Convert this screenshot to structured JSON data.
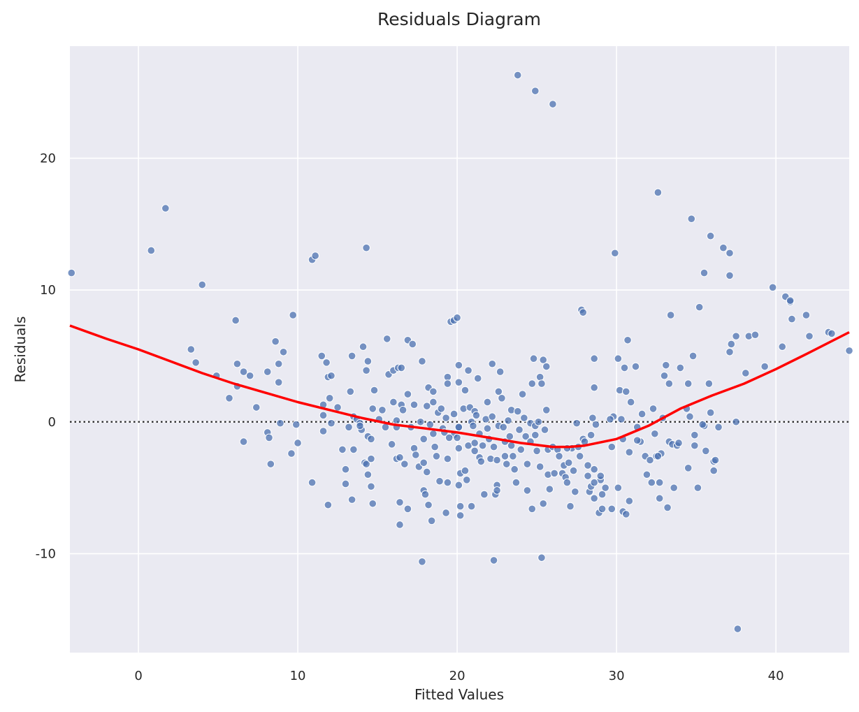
{
  "chart_data": {
    "type": "scatter",
    "title": "Residuals Diagram",
    "xlabel": "Fitted Values",
    "ylabel": "Residuals",
    "xlim": [
      -4.3,
      44.6
    ],
    "ylim": [
      -17.5,
      28.5
    ],
    "xticks": [
      0,
      10,
      20,
      30,
      40
    ],
    "xtick_labels": [
      "0",
      "10",
      "20",
      "30",
      "40"
    ],
    "yticks": [
      -10,
      0,
      10,
      20
    ],
    "ytick_labels": [
      "-10",
      "0",
      "10",
      "20"
    ],
    "grid": true,
    "background": "#eaeaf2",
    "grid_color": "#ffffff",
    "point_color": "#4c72b0",
    "trend_color": "#ff0000",
    "zero_line_color": "#262626",
    "points": [
      [
        -4.2,
        11.3
      ],
      [
        0.8,
        13.0
      ],
      [
        1.7,
        16.2
      ],
      [
        4.0,
        10.4
      ],
      [
        10.9,
        12.3
      ],
      [
        11.1,
        12.6
      ],
      [
        14.3,
        13.2
      ],
      [
        9.7,
        8.1
      ],
      [
        6.1,
        7.7
      ],
      [
        3.3,
        5.5
      ],
      [
        3.6,
        4.5
      ],
      [
        4.9,
        3.5
      ],
      [
        6.2,
        4.4
      ],
      [
        6.6,
        3.8
      ],
      [
        7.0,
        3.5
      ],
      [
        5.7,
        1.8
      ],
      [
        6.2,
        2.7
      ],
      [
        7.4,
        1.1
      ],
      [
        6.6,
        -1.5
      ],
      [
        8.1,
        3.8
      ],
      [
        8.6,
        6.1
      ],
      [
        8.8,
        4.4
      ],
      [
        9.1,
        5.3
      ],
      [
        8.8,
        3.0
      ],
      [
        8.1,
        -0.8
      ],
      [
        8.2,
        -1.2
      ],
      [
        8.9,
        -0.1
      ],
      [
        9.9,
        -0.2
      ],
      [
        10.0,
        -1.6
      ],
      [
        9.6,
        -2.4
      ],
      [
        8.3,
        -3.2
      ],
      [
        10.9,
        -4.6
      ],
      [
        11.5,
        5.0
      ],
      [
        11.8,
        4.5
      ],
      [
        11.9,
        3.4
      ],
      [
        12.1,
        3.5
      ],
      [
        11.6,
        1.3
      ],
      [
        12.0,
        1.8
      ],
      [
        11.6,
        0.5
      ],
      [
        11.6,
        -0.7
      ],
      [
        12.1,
        -0.1
      ],
      [
        11.9,
        -6.3
      ],
      [
        12.5,
        1.1
      ],
      [
        12.8,
        -2.1
      ],
      [
        13.0,
        -3.6
      ],
      [
        13.0,
        -4.7
      ],
      [
        13.4,
        -5.9
      ],
      [
        13.3,
        2.3
      ],
      [
        13.2,
        -0.4
      ],
      [
        13.5,
        0.4
      ],
      [
        13.4,
        5.0
      ],
      [
        13.5,
        -2.1
      ],
      [
        13.7,
        0.2
      ],
      [
        13.9,
        -0.1
      ],
      [
        14.0,
        -0.6
      ],
      [
        14.1,
        5.7
      ],
      [
        14.4,
        4.6
      ],
      [
        14.3,
        3.9
      ],
      [
        14.2,
        -3.1
      ],
      [
        14.3,
        -3.2
      ],
      [
        14.4,
        -4.0
      ],
      [
        14.4,
        -1.1
      ],
      [
        14.6,
        -4.9
      ],
      [
        14.6,
        -1.3
      ],
      [
        14.7,
        -6.2
      ],
      [
        14.6,
        -2.8
      ],
      [
        14.7,
        1.0
      ],
      [
        14.8,
        2.4
      ],
      [
        15.1,
        0.2
      ],
      [
        15.3,
        0.9
      ],
      [
        15.5,
        -0.4
      ],
      [
        15.6,
        6.3
      ],
      [
        15.7,
        3.6
      ],
      [
        16.0,
        3.9
      ],
      [
        16.0,
        1.5
      ],
      [
        16.2,
        0.1
      ],
      [
        16.2,
        -0.4
      ],
      [
        16.2,
        -2.8
      ],
      [
        16.3,
        4.1
      ],
      [
        16.4,
        -2.7
      ],
      [
        16.5,
        1.3
      ],
      [
        16.5,
        4.1
      ],
      [
        16.6,
        0.9
      ],
      [
        16.7,
        -3.2
      ],
      [
        16.9,
        6.2
      ],
      [
        16.9,
        2.1
      ],
      [
        17.1,
        -0.4
      ],
      [
        17.3,
        1.3
      ],
      [
        17.2,
        5.9
      ],
      [
        17.3,
        -2.0
      ],
      [
        17.4,
        -2.5
      ],
      [
        17.6,
        -3.4
      ],
      [
        17.7,
        0.0
      ],
      [
        17.8,
        4.6
      ],
      [
        17.9,
        -3.1
      ],
      [
        17.9,
        -5.2
      ],
      [
        18.0,
        -5.5
      ],
      [
        18.1,
        -3.8
      ],
      [
        18.2,
        -6.3
      ],
      [
        18.1,
        1.2
      ],
      [
        18.2,
        2.6
      ],
      [
        18.3,
        -0.2
      ],
      [
        18.5,
        2.3
      ],
      [
        18.5,
        1.5
      ],
      [
        18.5,
        -0.9
      ],
      [
        18.6,
        -1.9
      ],
      [
        18.7,
        -2.6
      ],
      [
        18.8,
        0.7
      ],
      [
        18.9,
        -4.5
      ],
      [
        19.0,
        1.0
      ],
      [
        19.1,
        -0.5
      ],
      [
        19.2,
        -0.8
      ],
      [
        19.3,
        0.3
      ],
      [
        19.4,
        3.4
      ],
      [
        19.4,
        2.9
      ],
      [
        19.4,
        -2.8
      ],
      [
        19.4,
        -4.6
      ],
      [
        19.6,
        7.6
      ],
      [
        19.8,
        7.7
      ],
      [
        20.0,
        7.9
      ],
      [
        19.8,
        0.6
      ],
      [
        19.8,
        -1.0
      ],
      [
        20.0,
        -1.2
      ],
      [
        20.1,
        -0.4
      ],
      [
        20.1,
        4.3
      ],
      [
        20.1,
        3.0
      ],
      [
        20.1,
        -0.4
      ],
      [
        20.1,
        -2.0
      ],
      [
        20.2,
        -3.9
      ],
      [
        20.1,
        -4.8
      ],
      [
        20.2,
        -6.4
      ],
      [
        20.4,
        1.0
      ],
      [
        20.5,
        2.4
      ],
      [
        20.5,
        -3.7
      ],
      [
        20.6,
        -4.4
      ],
      [
        20.7,
        3.9
      ],
      [
        20.8,
        1.1
      ],
      [
        20.9,
        0.0
      ],
      [
        21.0,
        -0.3
      ],
      [
        21.1,
        -2.2
      ],
      [
        21.1,
        0.8
      ],
      [
        21.2,
        0.5
      ],
      [
        21.3,
        3.3
      ],
      [
        21.4,
        -0.9
      ],
      [
        21.4,
        -2.7
      ],
      [
        21.5,
        -3.0
      ],
      [
        21.6,
        -1.8
      ],
      [
        21.8,
        0.2
      ],
      [
        21.9,
        1.5
      ],
      [
        21.9,
        -0.5
      ],
      [
        22.0,
        -1.3
      ],
      [
        22.1,
        -2.8
      ],
      [
        22.2,
        4.4
      ],
      [
        22.2,
        0.4
      ],
      [
        22.3,
        -1.9
      ],
      [
        22.4,
        -5.5
      ],
      [
        22.5,
        -4.8
      ],
      [
        22.5,
        -2.9
      ],
      [
        22.6,
        2.3
      ],
      [
        22.6,
        -0.3
      ],
      [
        22.7,
        3.8
      ],
      [
        22.8,
        1.8
      ],
      [
        22.9,
        -0.4
      ],
      [
        23.0,
        -1.5
      ],
      [
        23.0,
        -2.6
      ],
      [
        23.1,
        -3.2
      ],
      [
        23.2,
        0.1
      ],
      [
        23.3,
        -1.1
      ],
      [
        23.4,
        0.9
      ],
      [
        23.4,
        -1.8
      ],
      [
        23.5,
        -2.6
      ],
      [
        23.6,
        -3.6
      ],
      [
        23.7,
        -4.6
      ],
      [
        23.8,
        0.8
      ],
      [
        23.9,
        -0.6
      ],
      [
        24.0,
        -2.1
      ],
      [
        24.1,
        2.1
      ],
      [
        24.2,
        0.3
      ],
      [
        24.3,
        -1.1
      ],
      [
        24.4,
        -3.2
      ],
      [
        24.4,
        -5.2
      ],
      [
        24.6,
        -0.1
      ],
      [
        24.6,
        -1.5
      ],
      [
        24.7,
        2.9
      ],
      [
        24.8,
        4.8
      ],
      [
        24.9,
        -0.3
      ],
      [
        24.9,
        -1.0
      ],
      [
        25.0,
        -2.2
      ],
      [
        25.1,
        0.0
      ],
      [
        25.2,
        -3.4
      ],
      [
        25.2,
        3.4
      ],
      [
        25.3,
        2.9
      ],
      [
        25.4,
        4.7
      ],
      [
        25.5,
        -0.6
      ],
      [
        25.6,
        4.2
      ],
      [
        25.6,
        0.9
      ],
      [
        25.7,
        -2.1
      ],
      [
        25.7,
        -4.0
      ],
      [
        25.8,
        -5.1
      ],
      [
        26.0,
        -1.9
      ],
      [
        26.1,
        -3.9
      ],
      [
        26.3,
        -2.1
      ],
      [
        26.4,
        -2.6
      ],
      [
        26.6,
        -3.9
      ],
      [
        26.7,
        -3.3
      ],
      [
        26.8,
        -4.2
      ],
      [
        26.9,
        -4.6
      ],
      [
        27.0,
        -3.1
      ],
      [
        27.1,
        -6.4
      ],
      [
        27.2,
        -2.0
      ],
      [
        27.3,
        -3.7
      ],
      [
        27.4,
        -5.3
      ],
      [
        27.5,
        -0.1
      ],
      [
        27.7,
        -2.6
      ],
      [
        27.8,
        8.5
      ],
      [
        27.9,
        8.3
      ],
      [
        27.9,
        -1.3
      ],
      [
        28.0,
        -1.5
      ],
      [
        28.2,
        -4.1
      ],
      [
        28.3,
        -5.3
      ],
      [
        28.4,
        -4.9
      ],
      [
        28.4,
        -1.0
      ],
      [
        28.5,
        0.3
      ],
      [
        28.6,
        -3.6
      ],
      [
        28.6,
        -5.8
      ],
      [
        28.7,
        -0.2
      ],
      [
        28.6,
        2.6
      ],
      [
        28.6,
        4.8
      ],
      [
        28.9,
        -6.9
      ],
      [
        29.0,
        -4.4
      ],
      [
        29.1,
        -6.6
      ],
      [
        29.3,
        -5.0
      ],
      [
        29.7,
        -6.6
      ],
      [
        29.8,
        0.4
      ],
      [
        29.9,
        12.8
      ],
      [
        30.1,
        4.8
      ],
      [
        30.1,
        -5.0
      ],
      [
        30.2,
        2.4
      ],
      [
        30.3,
        0.2
      ],
      [
        30.4,
        -1.3
      ],
      [
        30.5,
        4.1
      ],
      [
        30.6,
        2.3
      ],
      [
        30.7,
        6.2
      ],
      [
        30.8,
        -2.3
      ],
      [
        30.8,
        -6.0
      ],
      [
        30.9,
        1.5
      ],
      [
        31.2,
        4.2
      ],
      [
        31.3,
        -0.4
      ],
      [
        31.5,
        -1.5
      ],
      [
        31.6,
        0.6
      ],
      [
        31.8,
        -2.6
      ],
      [
        31.9,
        -4.0
      ],
      [
        32.1,
        -2.9
      ],
      [
        32.2,
        -4.6
      ],
      [
        32.3,
        1.0
      ],
      [
        32.4,
        -0.9
      ],
      [
        32.5,
        -2.6
      ],
      [
        32.6,
        17.4
      ],
      [
        32.7,
        -4.6
      ],
      [
        32.7,
        -5.8
      ],
      [
        32.8,
        -2.4
      ],
      [
        32.9,
        0.3
      ],
      [
        33.0,
        3.5
      ],
      [
        33.1,
        4.3
      ],
      [
        33.2,
        -6.5
      ],
      [
        33.3,
        2.9
      ],
      [
        33.3,
        -1.5
      ],
      [
        33.4,
        8.1
      ],
      [
        33.5,
        -1.7
      ],
      [
        33.6,
        -5.0
      ],
      [
        33.8,
        -1.8
      ],
      [
        34.0,
        4.1
      ],
      [
        34.5,
        2.9
      ],
      [
        34.5,
        -3.5
      ],
      [
        34.7,
        15.4
      ],
      [
        34.8,
        5.0
      ],
      [
        34.9,
        -1.0
      ],
      [
        34.9,
        -1.8
      ],
      [
        35.1,
        -5.0
      ],
      [
        35.2,
        8.7
      ],
      [
        35.5,
        11.3
      ],
      [
        35.6,
        -2.2
      ],
      [
        35.9,
        14.1
      ],
      [
        35.8,
        2.9
      ],
      [
        35.9,
        0.7
      ],
      [
        36.1,
        -3.0
      ],
      [
        36.1,
        -3.7
      ],
      [
        36.4,
        -0.4
      ],
      [
        36.7,
        13.2
      ],
      [
        37.1,
        12.8
      ],
      [
        37.1,
        11.1
      ],
      [
        37.1,
        5.3
      ],
      [
        37.2,
        5.9
      ],
      [
        37.5,
        6.5
      ],
      [
        37.5,
        0.0
      ],
      [
        37.6,
        -15.7
      ],
      [
        38.1,
        3.7
      ],
      [
        38.3,
        6.5
      ],
      [
        38.7,
        6.6
      ],
      [
        39.3,
        4.2
      ],
      [
        39.8,
        10.2
      ],
      [
        40.4,
        5.7
      ],
      [
        40.6,
        9.5
      ],
      [
        40.9,
        9.1
      ],
      [
        40.9,
        9.2
      ],
      [
        41.0,
        7.8
      ],
      [
        41.9,
        8.1
      ],
      [
        42.1,
        6.5
      ],
      [
        43.3,
        6.8
      ],
      [
        43.5,
        6.7
      ],
      [
        44.6,
        5.4
      ],
      [
        23.8,
        26.3
      ],
      [
        24.9,
        25.1
      ],
      [
        26.0,
        24.1
      ],
      [
        17.8,
        -10.6
      ],
      [
        22.3,
        -10.5
      ],
      [
        25.3,
        -10.3
      ],
      [
        16.4,
        -7.8
      ],
      [
        18.4,
        -7.5
      ],
      [
        20.2,
        -7.1
      ],
      [
        19.3,
        -6.9
      ],
      [
        16.9,
        -6.6
      ],
      [
        16.4,
        -6.1
      ],
      [
        24.7,
        -6.6
      ],
      [
        25.4,
        -6.2
      ],
      [
        20.9,
        -6.4
      ],
      [
        21.7,
        -5.5
      ],
      [
        22.5,
        -5.2
      ],
      [
        13.9,
        -0.3
      ],
      [
        19.5,
        -1.2
      ],
      [
        20.7,
        -1.8
      ],
      [
        21.1,
        -1.6
      ],
      [
        15.9,
        -1.7
      ],
      [
        17.9,
        -1.3
      ],
      [
        26.9,
        -2.0
      ],
      [
        27.6,
        -1.9
      ],
      [
        29.0,
        -4.1
      ],
      [
        28.2,
        -3.3
      ],
      [
        28.6,
        -4.6
      ],
      [
        31.3,
        -1.4
      ],
      [
        29.1,
        -5.5
      ],
      [
        30.4,
        -6.8
      ],
      [
        30.6,
        -7.0
      ],
      [
        29.6,
        0.2
      ],
      [
        35.5,
        -0.3
      ],
      [
        34.4,
        1.0
      ],
      [
        35.4,
        -0.2
      ],
      [
        34.6,
        0.4
      ],
      [
        36.2,
        -2.9
      ],
      [
        33.9,
        -1.6
      ],
      [
        32.6,
        -2.6
      ],
      [
        29.7,
        -1.9
      ]
    ],
    "trend": {
      "x": [
        -4.3,
        -2,
        0,
        2,
        4,
        6,
        8,
        10,
        12,
        14,
        16,
        18,
        20,
        22,
        24,
        26,
        27,
        28,
        30,
        32,
        34,
        36,
        38,
        40,
        42,
        44.6
      ],
      "y": [
        7.3,
        6.3,
        5.5,
        4.6,
        3.7,
        2.9,
        2.2,
        1.5,
        0.9,
        0.3,
        -0.2,
        -0.5,
        -0.8,
        -1.2,
        -1.6,
        -1.9,
        -1.9,
        -1.8,
        -1.3,
        -0.3,
        1.0,
        2.0,
        2.9,
        4.0,
        5.2,
        6.8
      ]
    }
  }
}
